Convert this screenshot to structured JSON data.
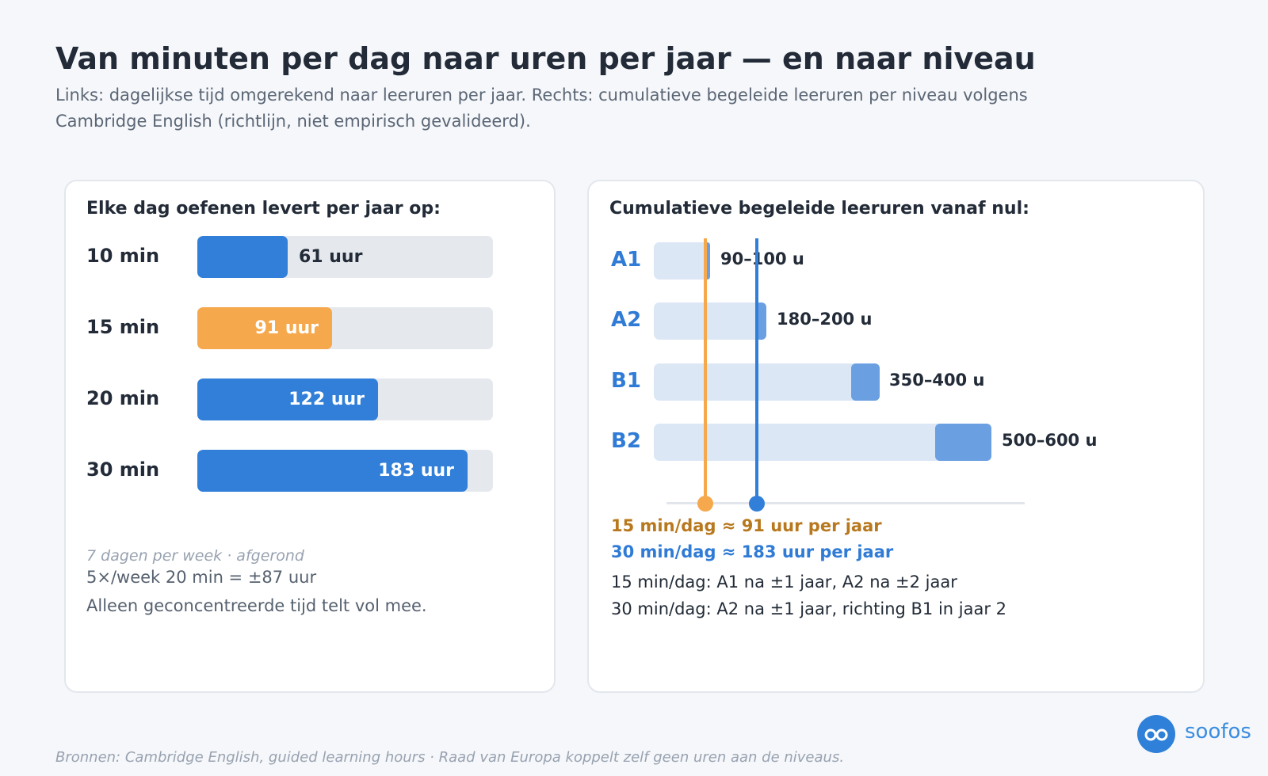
{
  "title": "Van minuten per dag naar uren per jaar — en naar niveau",
  "subtitle": "Links: dagelijkse tijd omgerekend naar leeruren per jaar. Rechts: cumulatieve begeleide leeruren per niveau volgens Cambridge English (richtlijn, niet empirisch gevalideerd).",
  "left_card": {
    "heading": "Elke dag oefenen levert per jaar op:",
    "note_italic": "7 dagen per week · afgerond",
    "note_1": "5×/week 20 min = ±87 uur",
    "note_2": "Alleen geconcentreerde tijd telt vol mee."
  },
  "right_card": {
    "heading": "Cumulatieve begeleide leeruren vanaf nul:",
    "highlight_15": "15 min/dag ≈ 91 uur per jaar",
    "highlight_30": "30 min/dag ≈ 183 uur per jaar",
    "text_15": "15 min/dag: A1 na ±1 jaar, A2 na ±2 jaar",
    "text_30": "30 min/dag: A2 na ±1 jaar, richting B1 in jaar 2"
  },
  "footer": "Bronnen: Cambridge English, guided learning hours · Raad van Europa koppelt zelf geen uren aan de niveaus.",
  "logo": {
    "text": "soofos",
    "icon": "glasses-icon"
  },
  "colors": {
    "blue": "#317fd8",
    "orange": "#f5a84c",
    "range": "#6a9fe2",
    "track": "#e5e8ed"
  },
  "chart_data": [
    {
      "type": "bar",
      "orientation": "horizontal",
      "categories": [
        "10 min",
        "15 min",
        "20 min",
        "30 min"
      ],
      "values": [
        61,
        91,
        122,
        183
      ],
      "labels": [
        "61 uur",
        "91 uur",
        "122 uur",
        "183 uur"
      ],
      "highlight": "15 min",
      "xlim": [
        0,
        200
      ]
    },
    {
      "type": "bar",
      "orientation": "horizontal",
      "categories": [
        "A1",
        "A2",
        "B1",
        "B2"
      ],
      "ranges": [
        [
          90,
          100
        ],
        [
          180,
          200
        ],
        [
          350,
          400
        ],
        [
          500,
          600
        ]
      ],
      "labels": [
        "90–100 u",
        "180–200 u",
        "350–400 u",
        "500–600 u"
      ],
      "reference_lines": [
        {
          "value": 91,
          "color": "#f5a84c"
        },
        {
          "value": 183,
          "color": "#317fd8"
        }
      ],
      "xlim": [
        0,
        635
      ]
    }
  ]
}
